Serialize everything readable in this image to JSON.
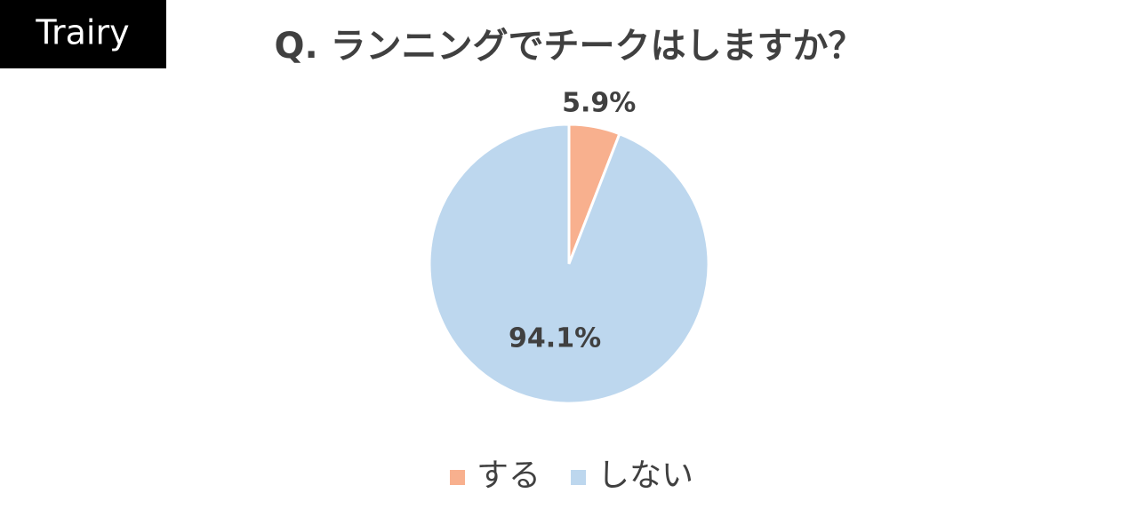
{
  "logo": "Trairy",
  "chart_data": {
    "type": "pie",
    "title": "Q. ランニングでチークはしますか？",
    "categories": [
      "する",
      "しない"
    ],
    "values": [
      5.9,
      94.1
    ],
    "value_labels": [
      "5.9%",
      "94.1%"
    ],
    "colors": [
      "#f8b08e",
      "#bdd7ee"
    ],
    "legend": "bottom"
  }
}
